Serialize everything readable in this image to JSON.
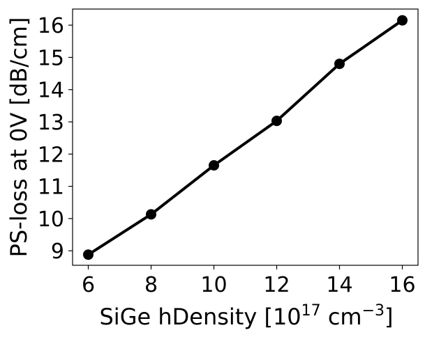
{
  "chart_data": {
    "type": "line",
    "title": "",
    "xlabel": "SiGe hDensity [10",
    "xlabel_exp1": "17",
    "xlabel_mid": " cm",
    "xlabel_exp2": "−3",
    "xlabel_end": "]",
    "ylabel": "PS-loss at 0V [dB/cm]",
    "x": [
      6,
      8,
      10,
      12,
      14,
      16
    ],
    "y": [
      8.88,
      10.13,
      11.65,
      13.03,
      14.8,
      16.15
    ],
    "xticks": [
      6,
      8,
      10,
      12,
      14,
      16
    ],
    "yticks": [
      9,
      10,
      11,
      12,
      13,
      14,
      15,
      16
    ],
    "xlim": [
      5.5,
      16.5
    ],
    "ylim": [
      8.55,
      16.5
    ],
    "grid": false,
    "line_color": "#000000",
    "marker_color": "#000000"
  }
}
